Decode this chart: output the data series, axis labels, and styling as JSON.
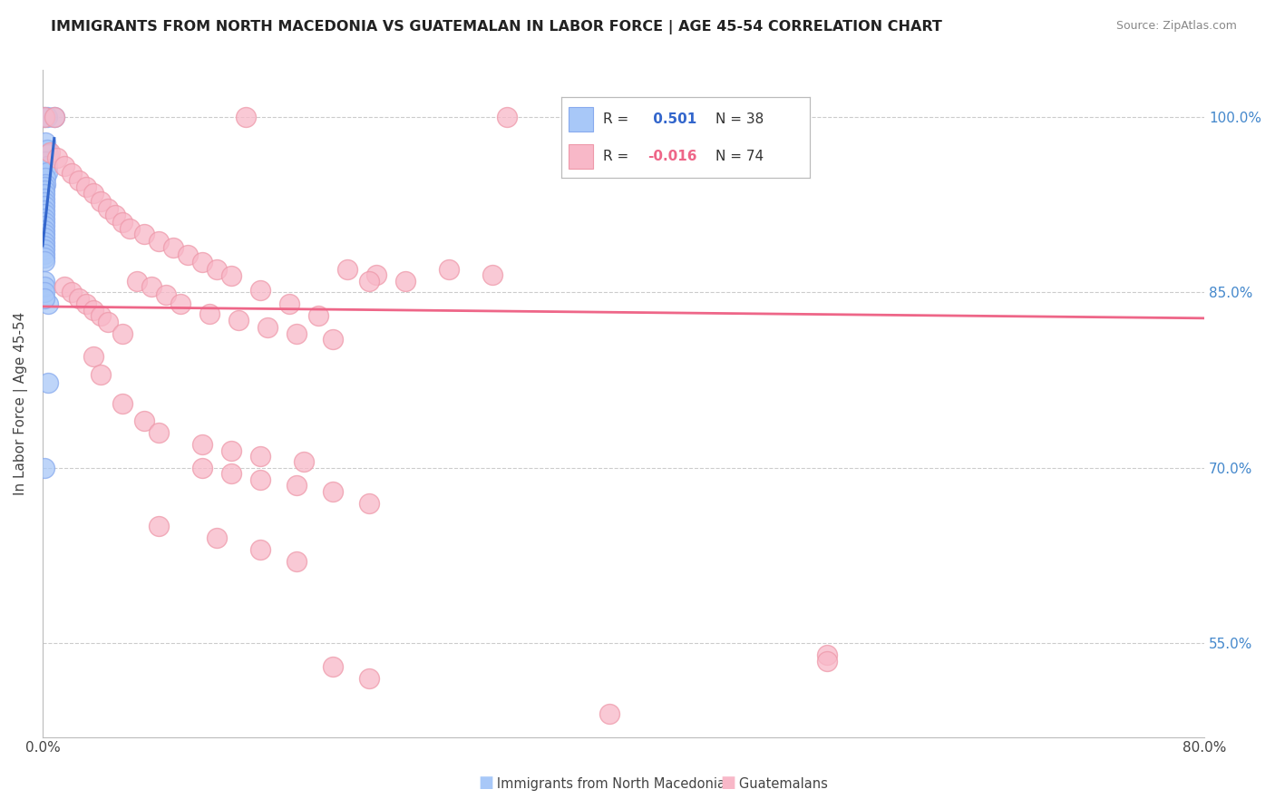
{
  "title": "IMMIGRANTS FROM NORTH MACEDONIA VS GUATEMALAN IN LABOR FORCE | AGE 45-54 CORRELATION CHART",
  "source": "Source: ZipAtlas.com",
  "ylabel": "In Labor Force | Age 45-54",
  "y_ticks": [
    0.55,
    0.7,
    0.85,
    1.0
  ],
  "y_tick_labels": [
    "55.0%",
    "70.0%",
    "85.0%",
    "100.0%"
  ],
  "legend_blue_r": " 0.501",
  "legend_blue_n": "38",
  "legend_pink_r": "-0.016",
  "legend_pink_n": "74",
  "blue_color": "#a8c8f8",
  "pink_color": "#f8b8c8",
  "blue_line_color": "#3366cc",
  "pink_line_color": "#ee6688",
  "blue_scatter_x": [
    0.001,
    0.003,
    0.008,
    0.002,
    0.003,
    0.004,
    0.002,
    0.003,
    0.003,
    0.002,
    0.002,
    0.001,
    0.001,
    0.001,
    0.001,
    0.001,
    0.001,
    0.001,
    0.001,
    0.001,
    0.001,
    0.001,
    0.001,
    0.001,
    0.001,
    0.001,
    0.001,
    0.001,
    0.001,
    0.001,
    0.001,
    0.004,
    0.004,
    0.001,
    0.001,
    0.001,
    0.001,
    0.001
  ],
  "blue_scatter_y": [
    1.0,
    1.0,
    1.0,
    0.978,
    0.972,
    0.968,
    0.962,
    0.958,
    0.953,
    0.948,
    0.943,
    0.94,
    0.937,
    0.934,
    0.93,
    0.927,
    0.924,
    0.92,
    0.917,
    0.913,
    0.91,
    0.907,
    0.903,
    0.9,
    0.897,
    0.893,
    0.89,
    0.887,
    0.883,
    0.88,
    0.877,
    0.84,
    0.773,
    0.7,
    0.86,
    0.855,
    0.85,
    0.845
  ],
  "pink_scatter_x": [
    0.001,
    0.008,
    0.14,
    0.32,
    0.48,
    0.005,
    0.01,
    0.015,
    0.02,
    0.025,
    0.03,
    0.035,
    0.04,
    0.045,
    0.05,
    0.055,
    0.06,
    0.07,
    0.08,
    0.09,
    0.1,
    0.11,
    0.12,
    0.13,
    0.15,
    0.17,
    0.19,
    0.21,
    0.23,
    0.25,
    0.28,
    0.31,
    0.015,
    0.02,
    0.025,
    0.03,
    0.035,
    0.04,
    0.045,
    0.055,
    0.065,
    0.075,
    0.085,
    0.095,
    0.115,
    0.135,
    0.155,
    0.175,
    0.2,
    0.225,
    0.035,
    0.04,
    0.055,
    0.07,
    0.08,
    0.11,
    0.13,
    0.15,
    0.18,
    0.11,
    0.13,
    0.15,
    0.175,
    0.2,
    0.225,
    0.08,
    0.12,
    0.15,
    0.175,
    0.39,
    0.2,
    0.225,
    0.54,
    0.54
  ],
  "pink_scatter_y": [
    1.0,
    1.0,
    1.0,
    1.0,
    1.0,
    0.97,
    0.965,
    0.958,
    0.952,
    0.946,
    0.94,
    0.935,
    0.928,
    0.922,
    0.916,
    0.91,
    0.905,
    0.9,
    0.894,
    0.888,
    0.882,
    0.876,
    0.87,
    0.864,
    0.852,
    0.84,
    0.83,
    0.87,
    0.865,
    0.86,
    0.87,
    0.865,
    0.855,
    0.85,
    0.845,
    0.84,
    0.835,
    0.83,
    0.825,
    0.815,
    0.86,
    0.855,
    0.848,
    0.84,
    0.832,
    0.826,
    0.82,
    0.815,
    0.81,
    0.86,
    0.795,
    0.78,
    0.755,
    0.74,
    0.73,
    0.72,
    0.715,
    0.71,
    0.705,
    0.7,
    0.695,
    0.69,
    0.685,
    0.68,
    0.67,
    0.65,
    0.64,
    0.63,
    0.62,
    0.49,
    0.53,
    0.52,
    0.54,
    0.535
  ]
}
